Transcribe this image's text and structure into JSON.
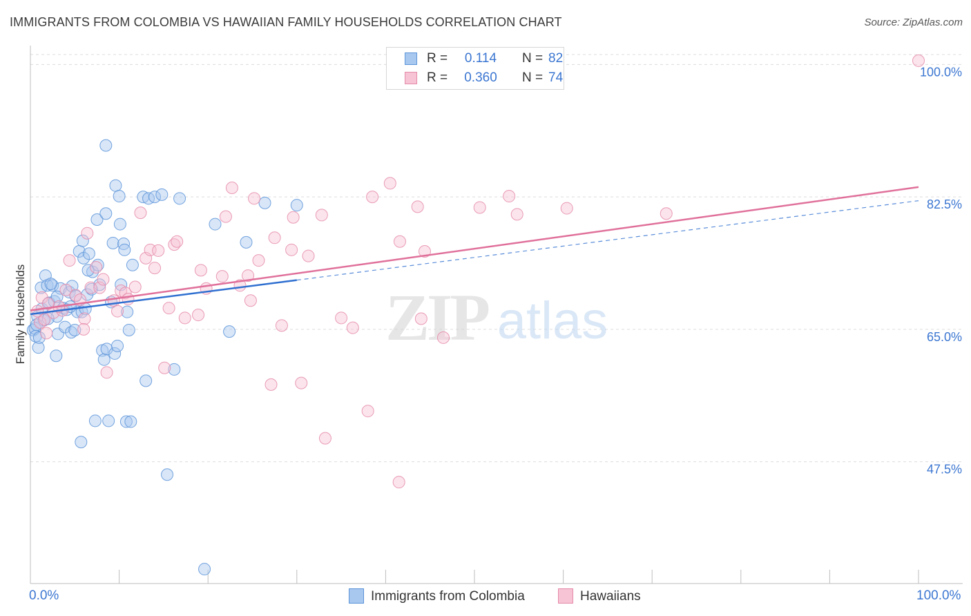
{
  "header": {
    "title": "IMMIGRANTS FROM COLOMBIA VS HAWAIIAN FAMILY HOUSEHOLDS CORRELATION CHART",
    "source": "Source: ZipAtlas.com"
  },
  "watermark": {
    "zip": "ZIP",
    "atlas": "atlas"
  },
  "legend": {
    "r_label": "R =",
    "n_label": "N =",
    "series1": {
      "r": "0.114",
      "n": "82"
    },
    "series2": {
      "r": "0.360",
      "n": "74"
    }
  },
  "bottom_legend": {
    "series1": "Immigrants from Colombia",
    "series2": "Hawaiians"
  },
  "x_axis": {
    "min_label": "0.0%",
    "max_label": "100.0%"
  },
  "colors": {
    "blue_fill": "#a9c8ef",
    "blue_stroke": "#5b93d8",
    "blue_line": "#2f6fd0",
    "pink_fill": "#f6c4d5",
    "pink_stroke": "#e58aa9",
    "pink_line": "#e0709a",
    "tick_text": "#3b76d1",
    "grid": "#dcdcdc"
  },
  "chart_data": {
    "type": "scatter",
    "title": "IMMIGRANTS FROM COLOMBIA VS HAWAIIAN FAMILY HOUSEHOLDS CORRELATION CHART",
    "xlabel": "",
    "ylabel": "Family Households",
    "xlim": [
      0,
      100
    ],
    "ylim": [
      31.4,
      102.5
    ],
    "y_ticks": [
      47.5,
      65.0,
      82.5,
      100.0
    ],
    "y_tick_labels": [
      "47.5%",
      "65.0%",
      "82.5%",
      "100.0%"
    ],
    "series": [
      {
        "name": "Immigrants from Colombia",
        "r": 0.114,
        "n": 82,
        "trend": {
          "x": [
            0,
            30
          ],
          "y": [
            67.0,
            71.5
          ]
        },
        "points": [
          [
            0.3,
            64.9
          ],
          [
            0.5,
            65.1
          ],
          [
            0.6,
            64.1
          ],
          [
            0.8,
            66.7
          ],
          [
            0.9,
            62.6
          ],
          [
            1.2,
            70.5
          ],
          [
            1.3,
            67.7
          ],
          [
            1.5,
            66.2
          ],
          [
            1.7,
            72.1
          ],
          [
            1.9,
            70.8
          ],
          [
            2.1,
            68.5
          ],
          [
            2.5,
            70.8
          ],
          [
            2.7,
            68.7
          ],
          [
            2.9,
            61.5
          ],
          [
            3.0,
            66.7
          ],
          [
            3.1,
            64.4
          ],
          [
            3.4,
            70.4
          ],
          [
            3.7,
            67.8
          ],
          [
            3.9,
            65.3
          ],
          [
            4.1,
            67.6
          ],
          [
            4.4,
            69.9
          ],
          [
            4.6,
            64.6
          ],
          [
            4.7,
            70.7
          ],
          [
            5.0,
            64.9
          ],
          [
            5.3,
            67.3
          ],
          [
            5.5,
            75.3
          ],
          [
            5.8,
            67.3
          ],
          [
            5.9,
            76.7
          ],
          [
            6.0,
            74.4
          ],
          [
            6.2,
            67.7
          ],
          [
            6.4,
            69.6
          ],
          [
            6.6,
            75.0
          ],
          [
            6.9,
            70.3
          ],
          [
            7.0,
            72.6
          ],
          [
            7.3,
            52.9
          ],
          [
            7.5,
            79.5
          ],
          [
            7.6,
            73.5
          ],
          [
            7.8,
            70.9
          ],
          [
            8.1,
            62.2
          ],
          [
            8.3,
            61.0
          ],
          [
            8.5,
            80.3
          ],
          [
            8.6,
            62.4
          ],
          [
            8.8,
            52.9
          ],
          [
            9.1,
            68.6
          ],
          [
            9.3,
            76.4
          ],
          [
            9.5,
            61.8
          ],
          [
            9.8,
            62.8
          ],
          [
            10.1,
            78.9
          ],
          [
            10.2,
            70.9
          ],
          [
            10.5,
            76.3
          ],
          [
            10.6,
            75.5
          ],
          [
            10.8,
            52.8
          ],
          [
            10.9,
            67.3
          ],
          [
            11.1,
            64.9
          ],
          [
            11.3,
            52.8
          ],
          [
            11.5,
            73.5
          ],
          [
            12.7,
            82.5
          ],
          [
            13.0,
            58.2
          ],
          [
            13.3,
            82.3
          ],
          [
            14.0,
            82.5
          ],
          [
            14.8,
            82.8
          ],
          [
            15.4,
            45.8
          ],
          [
            16.2,
            59.7
          ],
          [
            16.8,
            82.3
          ],
          [
            19.6,
            33.3
          ],
          [
            20.8,
            78.9
          ],
          [
            22.4,
            64.7
          ],
          [
            24.3,
            76.5
          ],
          [
            26.4,
            81.7
          ],
          [
            30.0,
            81.4
          ],
          [
            5.7,
            50.1
          ],
          [
            9.6,
            84.0
          ],
          [
            8.5,
            89.3
          ],
          [
            2.0,
            66.4
          ],
          [
            3.0,
            69.3
          ],
          [
            1.0,
            63.9
          ],
          [
            4.5,
            68.0
          ],
          [
            6.5,
            72.8
          ],
          [
            10.0,
            82.6
          ],
          [
            0.7,
            65.6
          ],
          [
            2.3,
            71.0
          ],
          [
            5.1,
            69.4
          ]
        ]
      },
      {
        "name": "Hawaiians",
        "r": 0.36,
        "n": 74,
        "trend": {
          "x": [
            0,
            100
          ],
          "y": [
            67.5,
            83.8
          ]
        },
        "points": [
          [
            0.8,
            67.4
          ],
          [
            1.1,
            65.9
          ],
          [
            1.3,
            69.2
          ],
          [
            1.6,
            66.3
          ],
          [
            2.6,
            67.2
          ],
          [
            3.6,
            67.5
          ],
          [
            4.0,
            70.2
          ],
          [
            4.4,
            74.1
          ],
          [
            5.1,
            69.5
          ],
          [
            5.6,
            68.9
          ],
          [
            6.1,
            66.4
          ],
          [
            6.4,
            77.7
          ],
          [
            6.8,
            70.5
          ],
          [
            7.4,
            73.2
          ],
          [
            7.8,
            70.5
          ],
          [
            8.2,
            71.6
          ],
          [
            8.6,
            59.3
          ],
          [
            9.4,
            68.8
          ],
          [
            9.8,
            67.4
          ],
          [
            10.2,
            70.1
          ],
          [
            10.7,
            69.8
          ],
          [
            11.8,
            70.6
          ],
          [
            12.4,
            80.4
          ],
          [
            13.0,
            74.4
          ],
          [
            13.5,
            75.5
          ],
          [
            14.0,
            73.1
          ],
          [
            14.4,
            75.4
          ],
          [
            15.1,
            59.9
          ],
          [
            15.6,
            67.8
          ],
          [
            16.2,
            76.2
          ],
          [
            16.5,
            76.6
          ],
          [
            17.4,
            66.5
          ],
          [
            18.9,
            66.9
          ],
          [
            19.2,
            72.8
          ],
          [
            19.8,
            70.4
          ],
          [
            21.6,
            72.0
          ],
          [
            22.0,
            79.9
          ],
          [
            22.7,
            83.7
          ],
          [
            23.6,
            70.8
          ],
          [
            24.5,
            72.1
          ],
          [
            24.8,
            68.8
          ],
          [
            25.2,
            82.3
          ],
          [
            25.7,
            74.1
          ],
          [
            27.1,
            57.7
          ],
          [
            27.5,
            77.1
          ],
          [
            28.3,
            65.5
          ],
          [
            29.4,
            75.5
          ],
          [
            29.6,
            79.8
          ],
          [
            30.5,
            57.9
          ],
          [
            31.3,
            74.7
          ],
          [
            32.8,
            80.1
          ],
          [
            33.2,
            50.6
          ],
          [
            35.0,
            66.5
          ],
          [
            36.3,
            65.2
          ],
          [
            38.0,
            54.2
          ],
          [
            38.5,
            82.5
          ],
          [
            40.5,
            84.3
          ],
          [
            41.5,
            44.8
          ],
          [
            41.6,
            76.6
          ],
          [
            43.6,
            81.2
          ],
          [
            44.0,
            66.4
          ],
          [
            44.4,
            75.3
          ],
          [
            46.5,
            63.9
          ],
          [
            50.6,
            81.1
          ],
          [
            53.9,
            82.6
          ],
          [
            54.8,
            80.2
          ],
          [
            60.4,
            81.0
          ],
          [
            71.6,
            80.3
          ],
          [
            100.0,
            100.5
          ],
          [
            1.8,
            64.5
          ],
          [
            3.2,
            68.0
          ],
          [
            6.0,
            65.0
          ],
          [
            11.0,
            69.0
          ],
          [
            2.0,
            68.4
          ]
        ]
      }
    ]
  }
}
